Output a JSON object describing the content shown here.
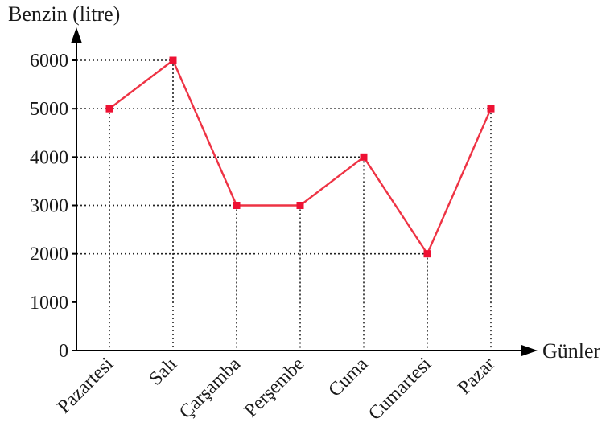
{
  "chart_data": {
    "type": "line",
    "ylabel": "Benzin (litre)",
    "xlabel": "Günler",
    "categories": [
      "Pazartesi",
      "Salı",
      "Çarşamba",
      "Perşembe",
      "Cuma",
      "Cumartesi",
      "Pazar"
    ],
    "series": [
      {
        "values": [
          5000,
          6000,
          3000,
          3000,
          4000,
          2000,
          5000
        ]
      }
    ],
    "yticks": [
      "0",
      "1000",
      "2000",
      "3000",
      "4000",
      "5000",
      "6000"
    ],
    "ylim": [
      0,
      6000
    ],
    "grid": "dotted guide lines from each point to both axes",
    "line_color": "#ee3344",
    "marker_color": "#ee1133",
    "axis_color": "#000000"
  }
}
